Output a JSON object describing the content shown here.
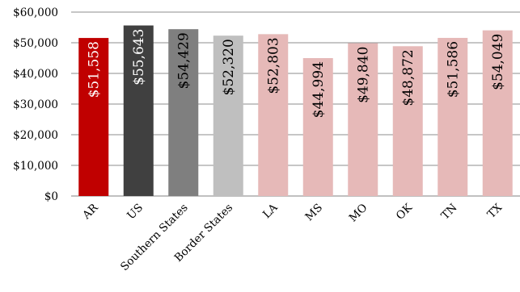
{
  "chart_data": {
    "type": "bar",
    "title": "",
    "xlabel": "",
    "ylabel": "",
    "ylim": [
      0,
      60000
    ],
    "yticks": [
      0,
      10000,
      20000,
      30000,
      40000,
      50000,
      60000
    ],
    "ytick_labels": [
      "$0",
      "$10,000",
      "$20,000",
      "$30,000",
      "$40,000",
      "$50,000",
      "$60,000"
    ],
    "grid": true,
    "legend": "none",
    "categories": [
      "AR",
      "US",
      "Southern States",
      "Border States",
      "LA",
      "MS",
      "MO",
      "OK",
      "TN",
      "TX"
    ],
    "values": [
      51558,
      55643,
      54429,
      52320,
      52803,
      44994,
      49840,
      48872,
      51586,
      54049
    ],
    "data_labels": [
      "$51,558",
      "$55,643",
      "$54,429",
      "$52,320",
      "$52,803",
      "$44,994",
      "$49,840",
      "$48,872",
      "$51,586",
      "$54,049"
    ],
    "bar_colors": [
      "#C00000",
      "#404040",
      "#7F7F7F",
      "#BFBFBF",
      "#E6B9B8",
      "#E6B9B8",
      "#E6B9B8",
      "#E6B9B8",
      "#E6B9B8",
      "#E6B9B8"
    ],
    "label_colors": [
      "#ffffff",
      "#ffffff",
      "#000000",
      "#000000",
      "#000000",
      "#000000",
      "#000000",
      "#000000",
      "#000000",
      "#000000"
    ]
  }
}
